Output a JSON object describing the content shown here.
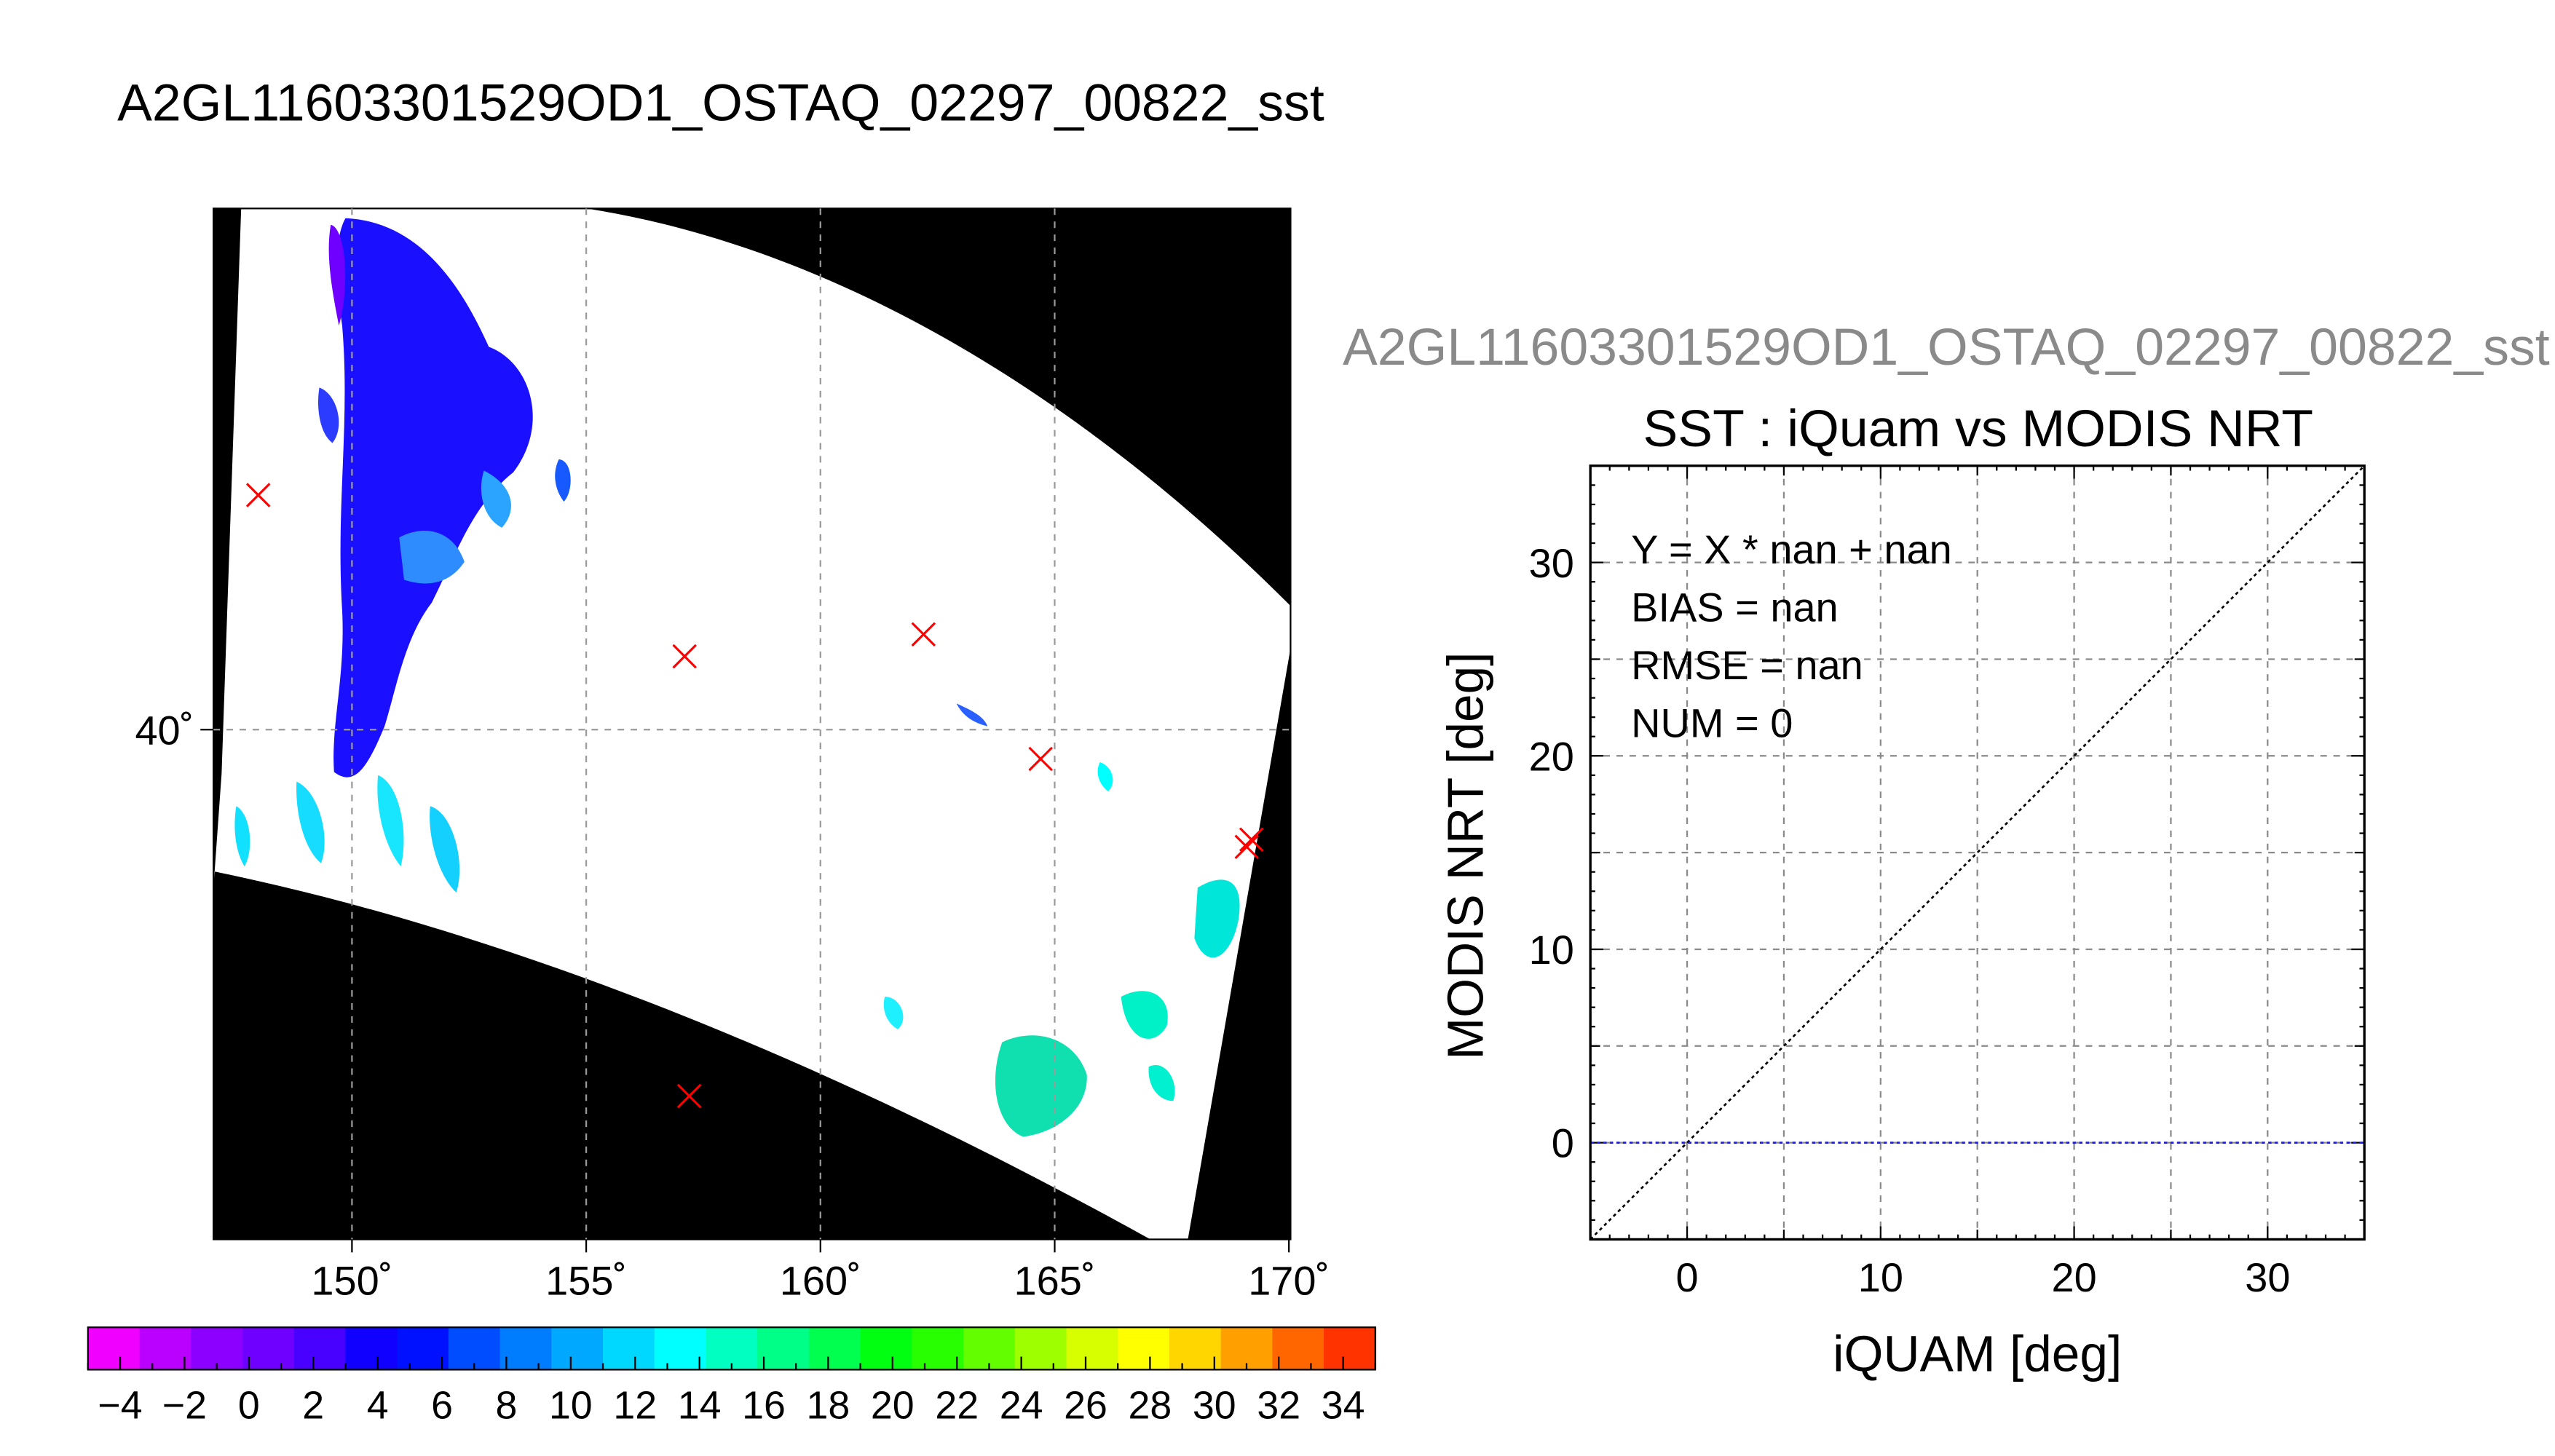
{
  "map": {
    "title": "A2GL11603301529OD1_OSTAQ_02297_00822_sst",
    "lon_ticks": [
      "150˚",
      "155˚",
      "160˚",
      "165˚",
      "170˚"
    ],
    "lat_ticks": [
      "40˚"
    ],
    "colorbar_labels": [
      "−4",
      "−2",
      "0",
      "2",
      "4",
      "6",
      "8",
      "10",
      "12",
      "14",
      "16",
      "18",
      "20",
      "22",
      "24",
      "26",
      "28",
      "30",
      "32",
      "34"
    ],
    "colorbar_range": [
      -5,
      35
    ],
    "colorbar_colors": [
      "#f000ff",
      "#ba00ff",
      "#8b00ff",
      "#6f00ff",
      "#4800ff",
      "#1000ff",
      "#0011ff",
      "#004cff",
      "#007dff",
      "#00a9ff",
      "#00d8ff",
      "#00ffff",
      "#00ffc0",
      "#00ff86",
      "#00ff4e",
      "#00ff11",
      "#28ff00",
      "#63ff00",
      "#9eff00",
      "#d8ff00",
      "#ffff00",
      "#ffd600",
      "#ff9f00",
      "#ff6600",
      "#ff3300"
    ],
    "matchup_marker_color": "#ff0000",
    "background_color": "#000000",
    "missing_color": "#ffffff"
  },
  "scatter": {
    "overflow_title": "A2GL11603301529OD1_OSTAQ_02297_00822_sst",
    "title": "SST : iQuam vs MODIS NRT",
    "xlabel": "iQUAM [deg]",
    "ylabel": "MODIS NRT [deg]",
    "stats": [
      "Y = X * nan + nan",
      "BIAS = nan",
      "RMSE = nan",
      "NUM = 0"
    ],
    "reference_line_color": "#000000",
    "zero_line_color": "#1f1fcf"
  },
  "chart_data": [
    {
      "type": "heatmap",
      "title": "A2GL11603301529OD1_OSTAQ_02297_00822_sst",
      "x_ticks": [
        150,
        155,
        160,
        165,
        170
      ],
      "y_ticks": [
        40
      ],
      "xlim": [
        147,
        170
      ],
      "ylim": [
        34.5,
        46.5
      ],
      "colorbar": {
        "labels": [
          -4,
          -2,
          0,
          2,
          4,
          6,
          8,
          10,
          12,
          14,
          16,
          18,
          20,
          22,
          24,
          26,
          28,
          30,
          32,
          34
        ],
        "range": [
          -5,
          35
        ]
      },
      "matchup_points": [
        {
          "lon": 148.0,
          "lat": 43.2
        },
        {
          "lon": 157.1,
          "lat": 41.0
        },
        {
          "lon": 162.2,
          "lat": 41.3
        },
        {
          "lon": 164.7,
          "lat": 39.6
        },
        {
          "lon": 169.1,
          "lat": 38.4
        },
        {
          "lon": 169.2,
          "lat": 38.5
        },
        {
          "lon": 157.2,
          "lat": 35.0
        }
      ]
    },
    {
      "type": "line",
      "title": "SST : iQuam vs MODIS NRT",
      "xlabel": "iQUAM [deg]",
      "ylabel": "MODIS NRT [deg]",
      "xlim": [
        -5,
        35
      ],
      "ylim": [
        -5,
        35
      ],
      "x_ticks": [
        0,
        10,
        20,
        30
      ],
      "y_ticks": [
        0,
        10,
        20,
        30
      ],
      "grid": true,
      "series": [
        {
          "name": "Y = X",
          "x": [
            -5,
            35
          ],
          "y": [
            -5,
            35
          ]
        },
        {
          "name": "Y = 0",
          "x": [
            -5,
            35
          ],
          "y": [
            0,
            0
          ]
        }
      ],
      "annotations": [
        "Y = X * nan + nan",
        "BIAS = nan",
        "RMSE = nan",
        "NUM = 0"
      ]
    }
  ]
}
